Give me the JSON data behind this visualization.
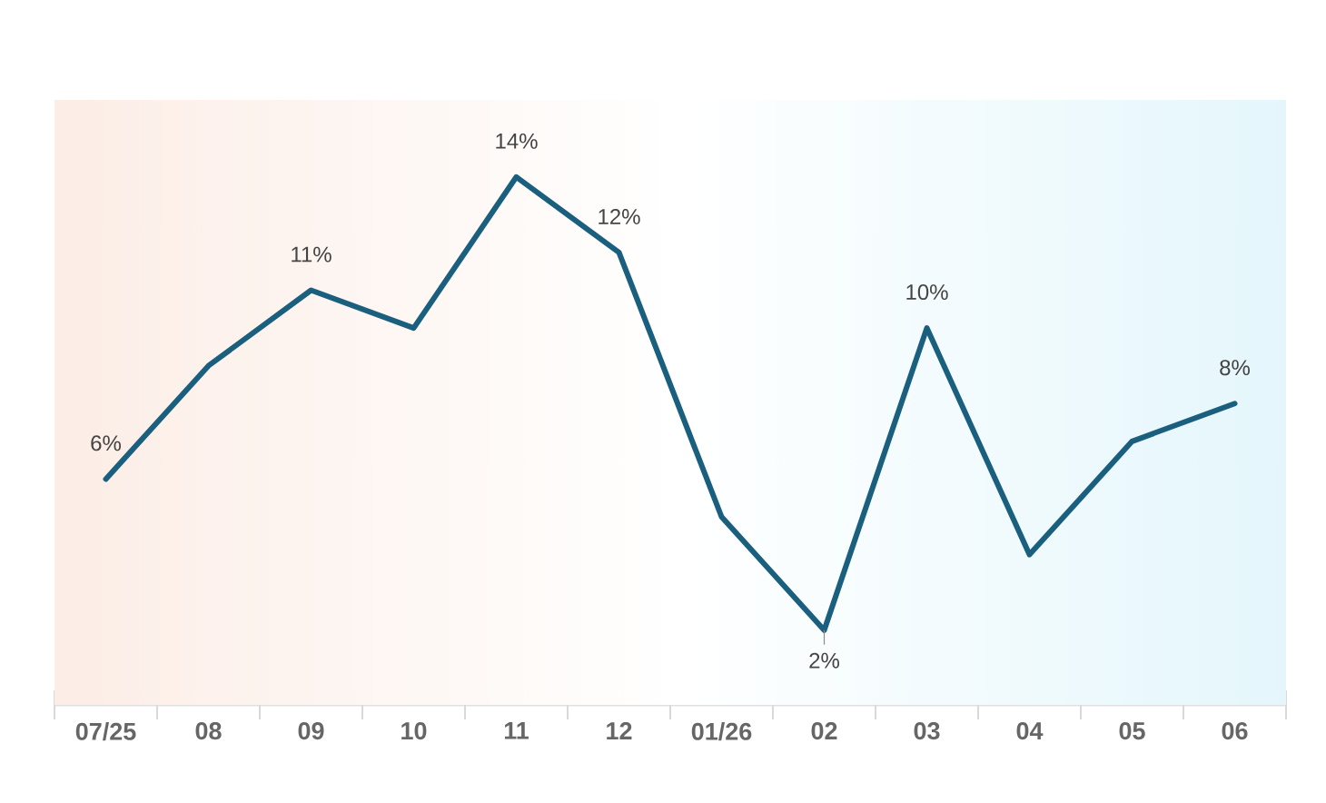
{
  "chart_data": {
    "type": "line",
    "categories": [
      "07/25",
      "08",
      "09",
      "10",
      "11",
      "12",
      "01/26",
      "02",
      "03",
      "04",
      "05",
      "06"
    ],
    "values": [
      6,
      9,
      11,
      10,
      14,
      12,
      5,
      2,
      10,
      4,
      7,
      8
    ],
    "value_labels": [
      "6%",
      null,
      "11%",
      null,
      "14%",
      "12%",
      null,
      "2%",
      "10%",
      null,
      null,
      "8%"
    ],
    "color": "#1b5f7f",
    "tick_labels": "x"
  }
}
